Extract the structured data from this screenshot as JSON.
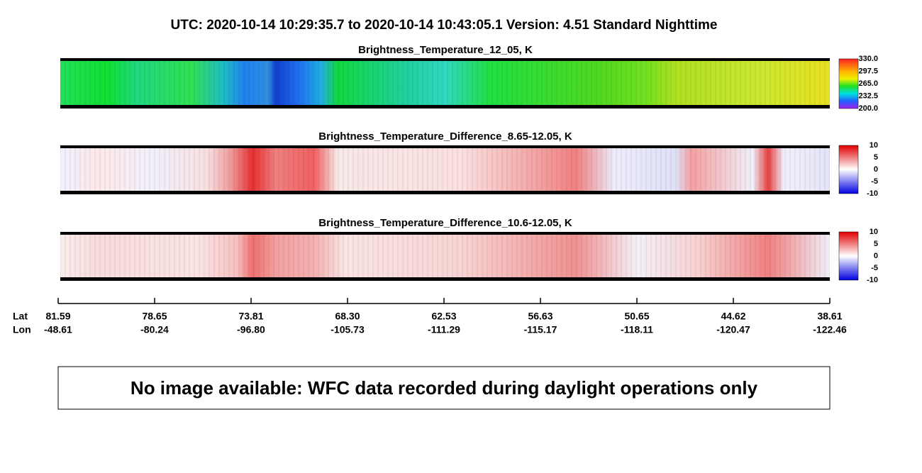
{
  "header": {
    "title": "UTC:  2020-10-14   10:29:35.7  to  2020-10-14   10:43:05.1    Version: 4.51  Standard Nighttime"
  },
  "panels": [
    {
      "title": "Brightness_Temperature_12_05, K",
      "colorbar_ticks": [
        "330.0",
        "297.5",
        "265.0",
        "232.5",
        "200.0"
      ]
    },
    {
      "title": "Brightness_Temperature_Difference_8.65-12.05, K",
      "colorbar_ticks": [
        "10",
        "5",
        "0",
        "-5",
        "-10"
      ]
    },
    {
      "title": "Brightness_Temperature_Difference_10.6-12.05, K",
      "colorbar_ticks": [
        "10",
        "5",
        "0",
        "-5",
        "-10"
      ]
    }
  ],
  "axis": {
    "lat_label": "Lat",
    "lon_label": "Lon",
    "lat": [
      "81.59",
      "78.65",
      "73.81",
      "68.30",
      "62.53",
      "56.63",
      "50.65",
      "44.62",
      "38.61"
    ],
    "lon": [
      "-48.61",
      "-80.24",
      "-96.80",
      "-105.73",
      "-111.29",
      "-115.17",
      "-118.11",
      "-120.47",
      "-122.46"
    ]
  },
  "message": "No image available: WFC data recorded during daylight operations only"
}
